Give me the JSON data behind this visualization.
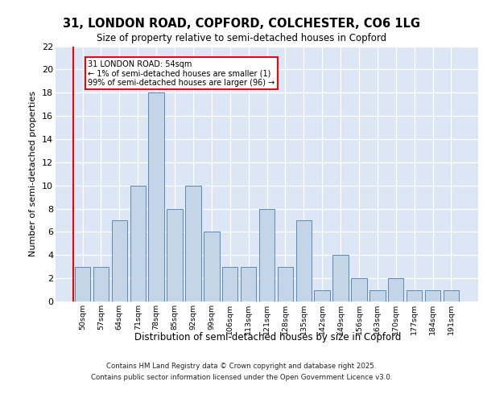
{
  "title1": "31, LONDON ROAD, COPFORD, COLCHESTER, CO6 1LG",
  "title2": "Size of property relative to semi-detached houses in Copford",
  "xlabel": "Distribution of semi-detached houses by size in Copford",
  "ylabel": "Number of semi-detached properties",
  "categories": [
    "50sqm",
    "57sqm",
    "64sqm",
    "71sqm",
    "78sqm",
    "85sqm",
    "92sqm",
    "99sqm",
    "106sqm",
    "113sqm",
    "121sqm",
    "128sqm",
    "135sqm",
    "142sqm",
    "149sqm",
    "156sqm",
    "163sqm",
    "170sqm",
    "177sqm",
    "184sqm",
    "191sqm"
  ],
  "values": [
    3,
    3,
    7,
    10,
    18,
    8,
    10,
    6,
    3,
    3,
    8,
    3,
    7,
    1,
    4,
    2,
    1,
    2,
    1,
    1,
    1
  ],
  "bar_color": "#c5d5e8",
  "bar_edge_color": "#5b8ab5",
  "annotation_title": "31 LONDON ROAD: 54sqm",
  "annotation_line1": "← 1% of semi-detached houses are smaller (1)",
  "annotation_line2": "99% of semi-detached houses are larger (96) →",
  "ylim": [
    0,
    22
  ],
  "yticks": [
    0,
    2,
    4,
    6,
    8,
    10,
    12,
    14,
    16,
    18,
    20,
    22
  ],
  "plot_background_color": "#dce6f5",
  "footer_line1": "Contains HM Land Registry data © Crown copyright and database right 2025.",
  "footer_line2": "Contains public sector information licensed under the Open Government Licence v3.0."
}
